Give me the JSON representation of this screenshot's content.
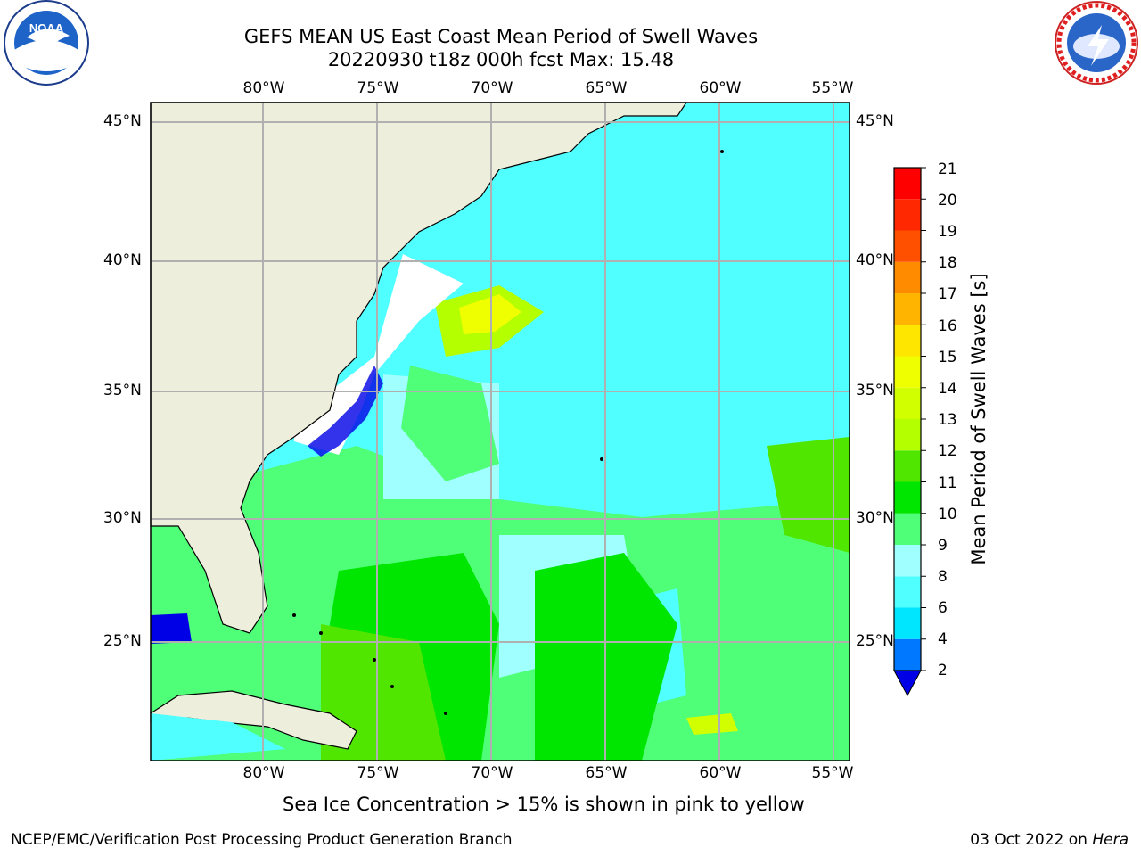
{
  "title": {
    "line1": "GEFS MEAN US East Coast Mean Period of Swell Waves",
    "line2": "20220930 t18z 000h fcst   Max: 15.48"
  },
  "logos": {
    "left": {
      "icon": "noaa-logo",
      "text": "NOAA"
    },
    "right": {
      "icon": "nws-logo",
      "text": "NATIONAL WEATHER SERVICE"
    }
  },
  "map": {
    "top_lon_labels": [
      "80°W",
      "75°W",
      "70°W",
      "65°W",
      "60°W",
      "55°W"
    ],
    "bottom_lon_labels": [
      "80°W",
      "75°W",
      "70°W",
      "65°W",
      "60°W",
      "55°W"
    ],
    "left_lat_labels": [
      "45°N",
      "40°N",
      "35°N",
      "30°N",
      "25°N"
    ],
    "right_lat_labels": [
      "45°N",
      "40°N",
      "35°N",
      "30°N",
      "25°N"
    ],
    "land_color": "#eeeedc",
    "grid_color": "#b0b0b0"
  },
  "colorbar": {
    "label": "Mean Period of Swell Waves [s]",
    "ticks": [
      "2",
      "4",
      "6",
      "8",
      "9",
      "10",
      "11",
      "12",
      "13",
      "14",
      "15",
      "16",
      "17",
      "18",
      "19",
      "20",
      "21"
    ],
    "colors": [
      "#0000e6",
      "#0078ff",
      "#00e6ff",
      "#50ffff",
      "#a0ffff",
      "#50ff78",
      "#00e600",
      "#50e600",
      "#b4ff00",
      "#d2ff00",
      "#f0ff00",
      "#ffe600",
      "#ffb400",
      "#ff8c00",
      "#ff5000",
      "#ff2800",
      "#ff0000"
    ]
  },
  "footnote": "Sea Ice Concentration > 15% is shown in pink to yellow",
  "credit_left": "NCEP/EMC/Verification Post Processing Product Generation Branch",
  "credit_right_date": "03 Oct 2022 on ",
  "credit_right_system": "Hera"
}
